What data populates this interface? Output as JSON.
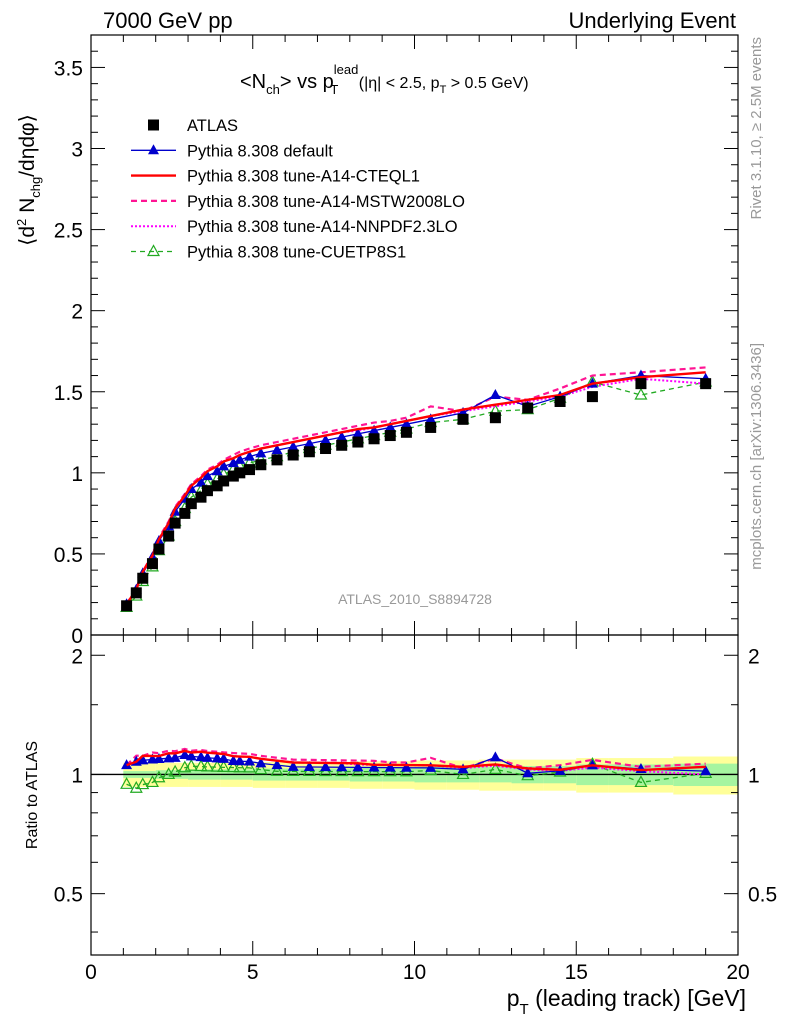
{
  "header": {
    "left": "7000 GeV pp",
    "right": "Underlying Event"
  },
  "side_text": {
    "rivet": "Rivet 3.1.10, ≥ 2.5M events",
    "mcplots": "mcplots.cern.ch [arXiv:1306.3436]"
  },
  "analysis_label": "ATLAS_2010_S8894728",
  "colors": {
    "data": "#000000",
    "default": "#0000cc",
    "cteql1": "#ff0000",
    "mstw": "#ff1493",
    "nnpdf": "#ff00ff",
    "cuetp8s1": "#22aa22",
    "band_inner": "#a6f5a0",
    "band_outer": "#ffff99"
  },
  "chart_data": [
    {
      "type": "line",
      "title_parts": {
        "a": "<N",
        "b": "ch",
        "c": "> vs p",
        "d": "lead",
        "e": "T",
        "f": " (|η| < 2.5, p",
        "g": "T",
        "h": " > 0.5 GeV)"
      },
      "ylabel_parts": {
        "a": "⟨d",
        "b": "2",
        "c": " N",
        "d": "chg",
        "e": "/dηdφ⟩"
      },
      "xlim": [
        0,
        20
      ],
      "ylim": [
        0,
        3.7
      ],
      "yticks": [
        "0",
        "0.5",
        "1",
        "1.5",
        "2",
        "2.5",
        "3",
        "3.5"
      ],
      "ytick_values": [
        0,
        0.5,
        1,
        1.5,
        2,
        2.5,
        3,
        3.5
      ],
      "legend": [
        "ATLAS",
        "Pythia 8.308 default",
        "Pythia 8.308 tune-A14-CTEQL1",
        "Pythia 8.308 tune-A14-MSTW2008LO",
        "Pythia 8.308 tune-A14-NNPDF2.3LO",
        "Pythia 8.308 tune-CUETP8S1"
      ],
      "x": [
        1.1,
        1.4,
        1.6,
        1.9,
        2.1,
        2.4,
        2.6,
        2.9,
        3.1,
        3.4,
        3.6,
        3.9,
        4.1,
        4.4,
        4.6,
        4.9,
        5.25,
        5.75,
        6.25,
        6.75,
        7.25,
        7.75,
        8.25,
        8.75,
        9.25,
        9.75,
        10.5,
        11.5,
        12.5,
        13.5,
        14.5,
        15.5,
        17.0,
        19.0
      ],
      "series": [
        {
          "name": "ATLAS",
          "values": [
            0.18,
            0.26,
            0.35,
            0.44,
            0.53,
            0.61,
            0.69,
            0.75,
            0.81,
            0.85,
            0.89,
            0.92,
            0.95,
            0.98,
            1.0,
            1.02,
            1.05,
            1.08,
            1.11,
            1.13,
            1.15,
            1.17,
            1.19,
            1.21,
            1.23,
            1.25,
            1.28,
            1.33,
            1.34,
            1.4,
            1.44,
            1.47,
            1.55,
            1.55
          ]
        },
        {
          "name": "Pythia 8.308 default",
          "values": [
            0.19,
            0.28,
            0.38,
            0.48,
            0.58,
            0.67,
            0.76,
            0.84,
            0.9,
            0.94,
            0.98,
            1.01,
            1.04,
            1.06,
            1.08,
            1.1,
            1.12,
            1.14,
            1.16,
            1.18,
            1.2,
            1.22,
            1.24,
            1.26,
            1.28,
            1.3,
            1.33,
            1.37,
            1.48,
            1.41,
            1.47,
            1.55,
            1.6,
            1.58
          ]
        },
        {
          "name": "Pythia 8.308 tune-A14-CTEQL1",
          "values": [
            0.19,
            0.28,
            0.39,
            0.49,
            0.59,
            0.69,
            0.78,
            0.86,
            0.92,
            0.97,
            1.01,
            1.04,
            1.07,
            1.09,
            1.11,
            1.13,
            1.15,
            1.17,
            1.19,
            1.21,
            1.23,
            1.25,
            1.27,
            1.28,
            1.3,
            1.32,
            1.35,
            1.39,
            1.42,
            1.45,
            1.48,
            1.55,
            1.59,
            1.62
          ]
        },
        {
          "name": "Pythia 8.308 tune-A14-MSTW2008LO",
          "values": [
            0.19,
            0.29,
            0.39,
            0.5,
            0.6,
            0.7,
            0.79,
            0.87,
            0.93,
            0.98,
            1.02,
            1.05,
            1.08,
            1.11,
            1.13,
            1.15,
            1.17,
            1.19,
            1.21,
            1.23,
            1.25,
            1.27,
            1.29,
            1.31,
            1.32,
            1.34,
            1.41,
            1.38,
            1.47,
            1.45,
            1.52,
            1.6,
            1.62,
            1.65
          ]
        },
        {
          "name": "Pythia 8.308 tune-A14-NNPDF2.3LO",
          "values": [
            0.19,
            0.28,
            0.39,
            0.49,
            0.59,
            0.69,
            0.78,
            0.86,
            0.92,
            0.97,
            1.01,
            1.04,
            1.07,
            1.09,
            1.11,
            1.13,
            1.15,
            1.17,
            1.19,
            1.21,
            1.23,
            1.25,
            1.26,
            1.28,
            1.3,
            1.32,
            1.35,
            1.38,
            1.41,
            1.44,
            1.47,
            1.53,
            1.58,
            1.55
          ]
        },
        {
          "name": "Pythia 8.308 tune-CUETP8S1",
          "values": [
            0.17,
            0.24,
            0.33,
            0.42,
            0.52,
            0.61,
            0.7,
            0.78,
            0.85,
            0.89,
            0.93,
            0.96,
            0.99,
            1.02,
            1.04,
            1.06,
            1.08,
            1.1,
            1.13,
            1.15,
            1.17,
            1.19,
            1.21,
            1.23,
            1.25,
            1.27,
            1.31,
            1.33,
            1.38,
            1.39,
            1.46,
            1.56,
            1.48,
            1.56
          ]
        }
      ]
    },
    {
      "type": "line",
      "ylabel": "Ratio to ATLAS",
      "xlabel_parts": {
        "a": "p",
        "b": "T",
        "c": " (leading track) [GeV]"
      },
      "xlim": [
        0,
        20
      ],
      "ylim": [
        0.35,
        2.25
      ],
      "xticks": [
        "0",
        "5",
        "10",
        "15",
        "20"
      ],
      "xtick_values": [
        0,
        5,
        10,
        15,
        20
      ],
      "yticks": [
        "0.5",
        "1",
        "2"
      ],
      "ytick_values": [
        0.5,
        1,
        2
      ],
      "band_edges": [
        1,
        2,
        3,
        4,
        5,
        6,
        7,
        8,
        9,
        10,
        11,
        12,
        13,
        14,
        15,
        16,
        18,
        20
      ],
      "band_inner": [
        0.02,
        0.025,
        0.03,
        0.03,
        0.035,
        0.035,
        0.035,
        0.04,
        0.04,
        0.045,
        0.045,
        0.045,
        0.05,
        0.05,
        0.06,
        0.06,
        0.065
      ],
      "band_outer": [
        0.07,
        0.07,
        0.07,
        0.07,
        0.075,
        0.075,
        0.075,
        0.08,
        0.08,
        0.085,
        0.085,
        0.09,
        0.09,
        0.09,
        0.1,
        0.1,
        0.11
      ]
    }
  ]
}
